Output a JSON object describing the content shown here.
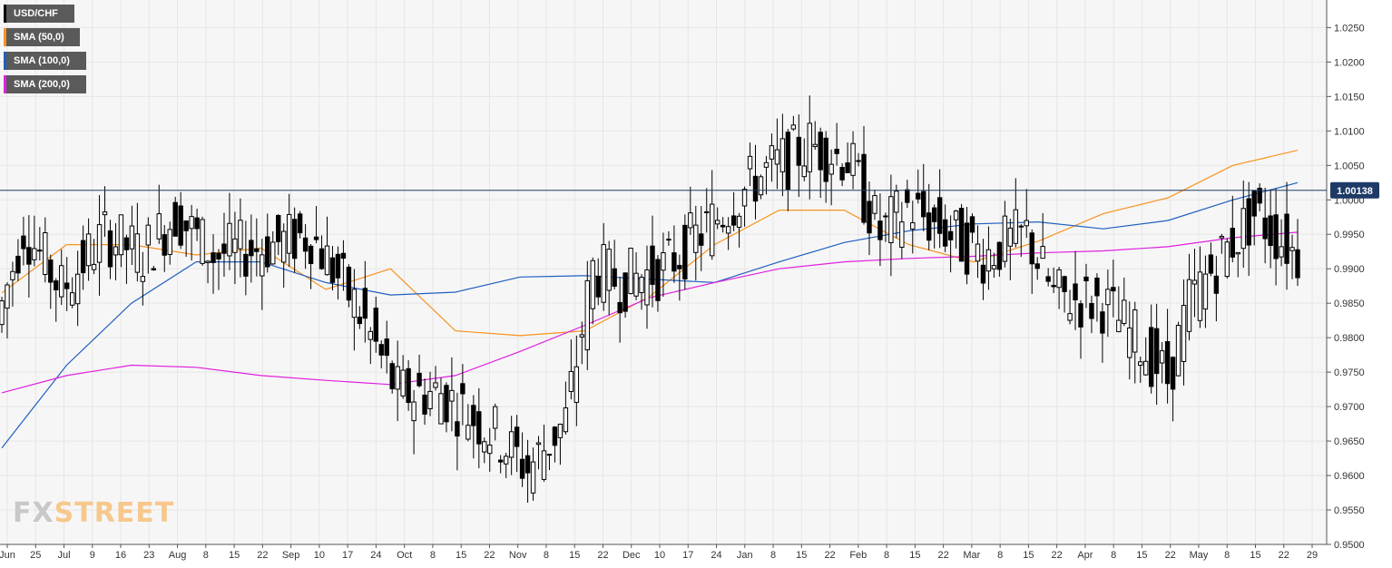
{
  "legend": [
    {
      "label": "USD/CHF",
      "color": "#000000"
    },
    {
      "label": "SMA (50,0)",
      "color": "#f7931e"
    },
    {
      "label": "SMA (100,0)",
      "color": "#1f5fbf"
    },
    {
      "label": "SMA (200,0)",
      "color": "#e020e0"
    }
  ],
  "watermark": {
    "part1": "FX",
    "part2": "STREET"
  },
  "chart_data": {
    "type": "candlestick",
    "symbol": "USD/CHF",
    "ylim": [
      0.95,
      1.029
    ],
    "grid": true,
    "y_ticks": [
      "1.0250",
      "1.0200",
      "1.0150",
      "1.0100",
      "1.0050",
      "1.0000",
      "0.9950",
      "0.9900",
      "0.9850",
      "0.9800",
      "0.9750",
      "0.9700",
      "0.9650",
      "0.9600",
      "0.9550",
      "0.9500"
    ],
    "x_ticks": [
      "Jun",
      "25",
      "Jul",
      "9",
      "16",
      "23",
      "Aug",
      "8",
      "15",
      "22",
      "Sep",
      "10",
      "17",
      "24",
      "Oct",
      "8",
      "15",
      "22",
      "Nov",
      "8",
      "15",
      "22",
      "Dec",
      "10",
      "17",
      "24",
      "Jan",
      "8",
      "15",
      "22",
      "Feb",
      "8",
      "15",
      "22",
      "Mar",
      "8",
      "15",
      "22",
      "Apr",
      "8",
      "15",
      "22",
      "May",
      "8",
      "15",
      "22",
      "29"
    ],
    "current_price": {
      "label": "1.00138",
      "value": 1.00138
    },
    "sma_keys": [
      0,
      0.05,
      0.1,
      0.15,
      0.2,
      0.25,
      0.3,
      0.35,
      0.4,
      0.45,
      0.5,
      0.55,
      0.6,
      0.65,
      0.7,
      0.75,
      0.8,
      0.85,
      0.9,
      0.95,
      1
    ],
    "sma": [
      {
        "name": "SMA (50,0)",
        "color": "#f7931e",
        "values": [
          0.9865,
          0.9935,
          0.9935,
          0.992,
          0.993,
          0.987,
          0.99,
          0.981,
          0.9803,
          0.981,
          0.986,
          0.9935,
          0.9985,
          0.9985,
          0.9935,
          0.991,
          0.994,
          0.998,
          1.0003,
          1.005,
          1.0072
        ]
      },
      {
        "name": "SMA (100,0)",
        "color": "#1f5fbf",
        "values": [
          0.964,
          0.976,
          0.985,
          0.991,
          0.991,
          0.988,
          0.9862,
          0.9866,
          0.9888,
          0.989,
          0.9885,
          0.988,
          0.991,
          0.9938,
          0.9955,
          0.9965,
          0.9968,
          0.9958,
          0.997,
          1.0,
          1.0025
        ]
      },
      {
        "name": "SMA (200,0)",
        "color": "#e020e0",
        "values": [
          0.972,
          0.9745,
          0.976,
          0.9757,
          0.9745,
          0.9738,
          0.9732,
          0.9745,
          0.978,
          0.9818,
          0.9858,
          0.988,
          0.99,
          0.991,
          0.9915,
          0.9918,
          0.9923,
          0.9926,
          0.9932,
          0.9945,
          0.9953
        ]
      }
    ],
    "candles": {
      "count": 240,
      "keyframes": [
        [
          0,
          0.982
        ],
        [
          5,
          0.996
        ],
        [
          12,
          0.987
        ],
        [
          20,
          0.995
        ],
        [
          27,
          0.992
        ],
        [
          33,
          0.998
        ],
        [
          40,
          0.992
        ],
        [
          48,
          0.993
        ],
        [
          58,
          0.995
        ],
        [
          66,
          0.985
        ],
        [
          74,
          0.972
        ],
        [
          82,
          0.972
        ],
        [
          92,
          0.966
        ],
        [
          98,
          0.961
        ],
        [
          105,
          0.968
        ],
        [
          110,
          0.99
        ],
        [
          115,
          0.988
        ],
        [
          123,
          0.99
        ],
        [
          131,
          0.996
        ],
        [
          140,
          1.003
        ],
        [
          150,
          1.008
        ],
        [
          157,
          1.006
        ],
        [
          163,
          0.995
        ],
        [
          168,
          0.999
        ],
        [
          176,
          0.995
        ],
        [
          182,
          0.992
        ],
        [
          190,
          0.995
        ],
        [
          195,
          0.986
        ],
        [
          204,
          0.985
        ],
        [
          211,
          0.979
        ],
        [
          216,
          0.974
        ],
        [
          220,
          0.985
        ],
        [
          226,
          0.992
        ],
        [
          232,
          0.998
        ],
        [
          240,
          0.992
        ]
      ]
    }
  }
}
